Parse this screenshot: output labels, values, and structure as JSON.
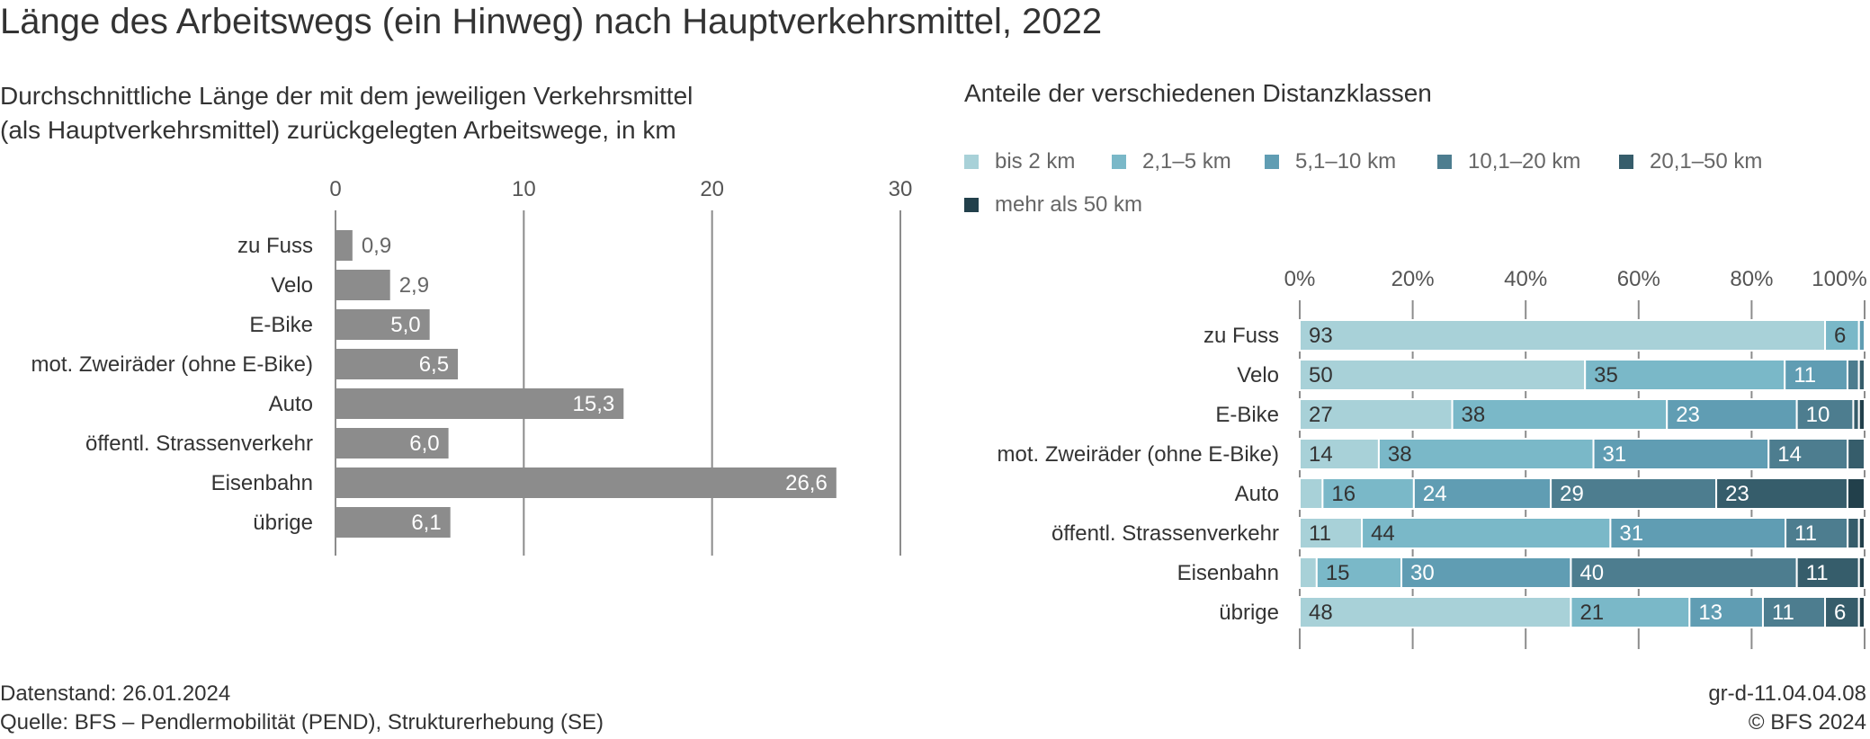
{
  "title": "Länge des Arbeitswegs (ein Hinweg) nach Hauptverkehrsmittel, 2022",
  "left_subtitle": "Durchschnittliche Länge der mit dem jeweiligen Verkehrsmittel\n(als Hauptverkehrsmittel) zurückgelegten Arbeitswege, in km",
  "right_subtitle": "Anteile der verschiedenen Distanzklassen",
  "legend": [
    {
      "label": "bis 2 km",
      "color": "#a8d1d8"
    },
    {
      "label": "2,1–5 km",
      "color": "#7ab8c8"
    },
    {
      "label": "5,1–10 km",
      "color": "#609db3"
    },
    {
      "label": "10,1–20 km",
      "color": "#4d7d8f"
    },
    {
      "label": "20,1–50 km",
      "color": "#365d6b"
    },
    {
      "label": "mehr als 50 km",
      "color": "#22404b"
    }
  ],
  "chart_data": [
    {
      "type": "bar",
      "orientation": "horizontal",
      "categories": [
        "zu Fuss",
        "Velo",
        "E-Bike",
        "mot. Zweiräder (ohne E-Bike)",
        "Auto",
        "öffentl. Strassenverkehr",
        "Eisenbahn",
        "übrige"
      ],
      "values": [
        0.9,
        2.9,
        5.0,
        6.5,
        15.3,
        6.0,
        26.6,
        6.1
      ],
      "value_labels": [
        "0,9",
        "2,9",
        "5,0",
        "6,5",
        "15,3",
        "6,0",
        "26,6",
        "6,1"
      ],
      "xlim": [
        0,
        30
      ],
      "ticks": [
        0,
        10,
        20,
        30
      ],
      "tick_labels": [
        "0",
        "10",
        "20",
        "30"
      ],
      "bar_color": "#8c8c8c",
      "grid": true
    },
    {
      "type": "bar",
      "orientation": "horizontal",
      "stacked": true,
      "categories": [
        "zu Fuss",
        "Velo",
        "E-Bike",
        "mot. Zweiräder (ohne E-Bike)",
        "Auto",
        "öffentl. Strassenverkehr",
        "Eisenbahn",
        "übrige"
      ],
      "series": [
        {
          "name": "bis 2 km",
          "values": [
            93,
            50,
            27,
            14,
            4,
            11,
            3,
            48
          ]
        },
        {
          "name": "2,1–5 km",
          "values": [
            6,
            35,
            38,
            38,
            16,
            44,
            15,
            21
          ]
        },
        {
          "name": "5,1–10 km",
          "values": [
            1,
            11,
            23,
            31,
            24,
            31,
            30,
            13
          ]
        },
        {
          "name": "10,1–20 km",
          "values": [
            0,
            2,
            10,
            14,
            29,
            11,
            40,
            11
          ]
        },
        {
          "name": "20,1–50 km",
          "values": [
            0,
            1,
            1,
            3,
            23,
            2,
            11,
            6
          ]
        },
        {
          "name": "mehr als 50 km",
          "values": [
            0,
            0,
            1,
            0,
            3,
            1,
            1,
            1
          ]
        }
      ],
      "xlim": [
        0,
        100
      ],
      "ticks": [
        0,
        20,
        40,
        60,
        80,
        100
      ],
      "tick_labels": [
        "0%",
        "20%",
        "40%",
        "60%",
        "80%",
        "100%"
      ],
      "grid": true,
      "legend_position": "top"
    }
  ],
  "footer": {
    "date": "Datenstand: 26.01.2024",
    "source": "Quelle: BFS – Pendlermobilität (PEND), Strukturerhebung (SE)",
    "code": "gr-d-11.04.04.08",
    "copyright": "© BFS 2024"
  }
}
